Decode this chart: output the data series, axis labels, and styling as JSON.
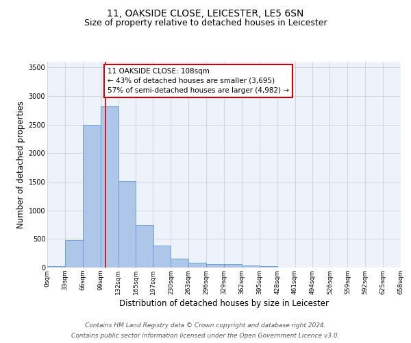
{
  "title1": "11, OAKSIDE CLOSE, LEICESTER, LE5 6SN",
  "title2": "Size of property relative to detached houses in Leicester",
  "xlabel": "Distribution of detached houses by size in Leicester",
  "ylabel": "Number of detached properties",
  "footnote1": "Contains HM Land Registry data © Crown copyright and database right 2024.",
  "footnote2": "Contains public sector information licensed under the Open Government Licence v3.0.",
  "annotation_line1": "11 OAKSIDE CLOSE: 108sqm",
  "annotation_line2": "← 43% of detached houses are smaller (3,695)",
  "annotation_line3": "57% of semi-detached houses are larger (4,982) →",
  "bar_left_edges": [
    0,
    33,
    66,
    99,
    132,
    165,
    197,
    230,
    263,
    296,
    329,
    362,
    395,
    428,
    461,
    494,
    526,
    559,
    592,
    625
  ],
  "bar_heights": [
    20,
    480,
    2500,
    2820,
    1510,
    750,
    390,
    160,
    80,
    55,
    55,
    40,
    20,
    5,
    5,
    2,
    2,
    1,
    1,
    0
  ],
  "bin_width": 33,
  "bar_color": "#aec6e8",
  "bar_edge_color": "#5b9bd5",
  "vline_color": "#cc0000",
  "vline_x": 108,
  "ylim": [
    0,
    3600
  ],
  "xlim": [
    0,
    658
  ],
  "tick_labels": [
    "0sqm",
    "33sqm",
    "66sqm",
    "99sqm",
    "132sqm",
    "165sqm",
    "197sqm",
    "230sqm",
    "263sqm",
    "296sqm",
    "329sqm",
    "362sqm",
    "395sqm",
    "428sqm",
    "461sqm",
    "494sqm",
    "526sqm",
    "559sqm",
    "592sqm",
    "625sqm",
    "658sqm"
  ],
  "tick_positions": [
    0,
    33,
    66,
    99,
    132,
    165,
    197,
    230,
    263,
    296,
    329,
    362,
    395,
    428,
    461,
    494,
    526,
    559,
    592,
    625,
    658
  ],
  "yticks": [
    0,
    500,
    1000,
    1500,
    2000,
    2500,
    3000,
    3500
  ],
  "grid_color": "#d0d0d0",
  "bg_color": "#eef2fb",
  "annotation_box_color": "#ffffff",
  "annotation_box_edge": "#cc0000",
  "title_fontsize": 10,
  "subtitle_fontsize": 9,
  "axis_label_fontsize": 8.5,
  "tick_fontsize": 6.5,
  "annotation_fontsize": 7.5,
  "footnote_fontsize": 6.5
}
